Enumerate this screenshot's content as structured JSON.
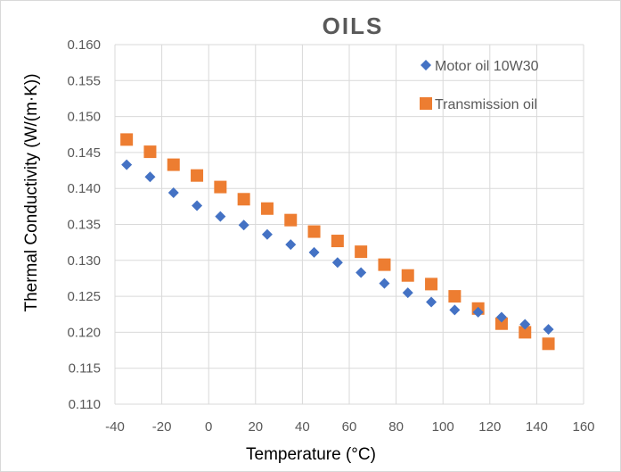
{
  "chart_data": {
    "type": "scatter",
    "title": "OILS",
    "xlabel": "Temperature (°C)",
    "ylabel": "Thermal Conductivity (W/(m·K))",
    "xlim": [
      -40,
      160
    ],
    "ylim": [
      0.11,
      0.16
    ],
    "x_ticks": [
      "-40",
      "-20",
      "0",
      "20",
      "40",
      "60",
      "80",
      "100",
      "120",
      "140",
      "160"
    ],
    "y_ticks": [
      "0.110",
      "0.115",
      "0.120",
      "0.125",
      "0.130",
      "0.135",
      "0.140",
      "0.145",
      "0.150",
      "0.155",
      "0.160"
    ],
    "grid": "vertical and horizontal",
    "legend_position": "top-right",
    "series": [
      {
        "name": "Motor oil 10W30",
        "marker": "diamond",
        "color": "#4472c4",
        "points": [
          [
            -35,
            0.1433
          ],
          [
            -25,
            0.1416
          ],
          [
            -15,
            0.1394
          ],
          [
            -5,
            0.1376
          ],
          [
            5,
            0.1361
          ],
          [
            15,
            0.1349
          ],
          [
            25,
            0.1336
          ],
          [
            35,
            0.1322
          ],
          [
            45,
            0.1311
          ],
          [
            55,
            0.1297
          ],
          [
            65,
            0.1283
          ],
          [
            75,
            0.1268
          ],
          [
            85,
            0.1255
          ],
          [
            95,
            0.1242
          ],
          [
            105,
            0.1231
          ],
          [
            115,
            0.1228
          ],
          [
            125,
            0.1221
          ],
          [
            135,
            0.1211
          ],
          [
            145,
            0.1204
          ]
        ]
      },
      {
        "name": "Transmission oil",
        "marker": "square",
        "color": "#ed7d31",
        "points": [
          [
            -35,
            0.1468
          ],
          [
            -25,
            0.1451
          ],
          [
            -15,
            0.1433
          ],
          [
            -5,
            0.1418
          ],
          [
            5,
            0.1402
          ],
          [
            15,
            0.1385
          ],
          [
            25,
            0.1372
          ],
          [
            35,
            0.1356
          ],
          [
            45,
            0.134
          ],
          [
            55,
            0.1327
          ],
          [
            65,
            0.1312
          ],
          [
            75,
            0.1294
          ],
          [
            85,
            0.1279
          ],
          [
            95,
            0.1267
          ],
          [
            105,
            0.125
          ],
          [
            115,
            0.1233
          ],
          [
            125,
            0.1212
          ],
          [
            135,
            0.12
          ],
          [
            145,
            0.1184
          ]
        ]
      }
    ]
  }
}
